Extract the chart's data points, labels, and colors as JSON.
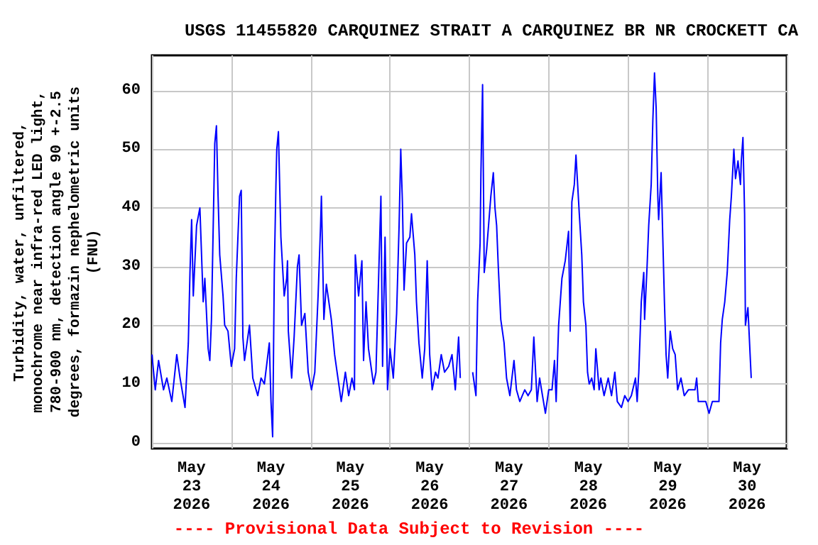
{
  "chart_data": {
    "type": "line",
    "title": "USGS 11455820 CARQUINEZ STRAIT A CARQUINEZ BR NR CROCKETT CA",
    "ylabel": "Turbidity, water, unfiltered,\nmonochrome near infra-red LED light,\n780-900 nm, detection angle 90 +-2.5\ndegrees, formazin nephelometric units\n(FNU)",
    "annotations": [
      "---- Provisional Data Subject to Revision ----"
    ],
    "x": [
      "2026-05-23T00:00",
      "2026-05-23T01:00",
      "2026-05-23T02:00",
      "2026-05-23T03:30",
      "2026-05-23T04:30",
      "2026-05-23T06:00",
      "2026-05-23T07:30",
      "2026-05-23T08:30",
      "2026-05-23T10:00",
      "2026-05-23T11:00",
      "2026-05-23T11:30",
      "2026-05-23T12:00",
      "2026-05-23T12:30",
      "2026-05-23T13:30",
      "2026-05-23T14:30",
      "2026-05-23T15:30",
      "2026-05-23T16:00",
      "2026-05-23T17:00",
      "2026-05-23T17:30",
      "2026-05-23T18:00",
      "2026-05-23T19:00",
      "2026-05-23T19:30",
      "2026-05-23T20:00",
      "2026-05-23T20:30",
      "2026-05-23T21:30",
      "2026-05-23T22:00",
      "2026-05-23T23:00",
      "2026-05-24T00:00",
      "2026-05-24T01:00",
      "2026-05-24T01:30",
      "2026-05-24T02:30",
      "2026-05-24T03:00",
      "2026-05-24T03:30",
      "2026-05-24T04:00",
      "2026-05-24T05:30",
      "2026-05-24T06:30",
      "2026-05-24T08:00",
      "2026-05-24T09:00",
      "2026-05-24T10:00",
      "2026-05-24T11:30",
      "2026-05-24T12:00",
      "2026-05-24T12:30",
      "2026-05-24T12:45",
      "2026-05-24T13:00",
      "2026-05-24T13:30",
      "2026-05-24T13:45",
      "2026-05-24T14:15",
      "2026-05-24T15:00",
      "2026-05-24T16:00",
      "2026-05-24T16:45",
      "2026-05-24T17:00",
      "2026-05-24T17:15",
      "2026-05-24T18:15",
      "2026-05-24T19:00",
      "2026-05-24T20:00",
      "2026-05-24T20:30",
      "2026-05-24T21:15",
      "2026-05-24T22:15",
      "2026-05-24T23:15",
      "2026-05-25T00:15",
      "2026-05-25T01:15",
      "2026-05-25T02:15",
      "2026-05-25T03:00",
      "2026-05-25T03:15",
      "2026-05-25T04:00",
      "2026-05-25T04:45",
      "2026-05-25T06:15",
      "2026-05-25T07:15",
      "2026-05-25T08:15",
      "2026-05-25T09:15",
      "2026-05-25T10:30",
      "2026-05-25T11:30",
      "2026-05-25T12:30",
      "2026-05-25T13:15",
      "2026-05-25T13:30",
      "2026-05-25T14:30",
      "2026-05-25T15:30",
      "2026-05-25T16:00",
      "2026-05-25T16:45",
      "2026-05-25T17:30",
      "2026-05-25T18:45",
      "2026-05-25T19:00",
      "2026-05-25T19:45",
      "2026-05-25T20:45",
      "2026-05-25T21:15",
      "2026-05-25T21:45",
      "2026-05-25T22:30",
      "2026-05-25T23:15",
      "2026-05-26T00:00",
      "2026-05-26T01:00",
      "2026-05-26T02:00",
      "2026-05-26T02:45",
      "2026-05-26T03:15",
      "2026-05-26T03:45",
      "2026-05-26T04:15",
      "2026-05-26T05:00",
      "2026-05-26T06:00",
      "2026-05-26T06:30",
      "2026-05-26T07:30",
      "2026-05-26T08:00",
      "2026-05-26T08:45",
      "2026-05-26T09:45",
      "2026-05-26T10:30",
      "2026-05-26T11:15",
      "2026-05-26T12:00",
      "2026-05-26T12:45",
      "2026-05-26T13:45",
      "2026-05-26T14:30",
      "2026-05-26T15:30",
      "2026-05-26T16:30",
      "2026-05-26T17:45",
      "2026-05-26T18:45",
      "2026-05-26T19:45",
      "2026-05-26T20:45",
      "2026-05-26T21:15",
      "2026-05-26T22:30",
      "2026-05-27T01:00",
      "2026-05-27T02:00",
      "2026-05-27T02:30",
      "2026-05-27T03:15",
      "2026-05-27T03:30",
      "2026-05-27T04:00",
      "2026-05-27T04:30",
      "2026-05-27T05:15",
      "2026-05-27T06:30",
      "2026-05-27T07:15",
      "2026-05-27T07:45",
      "2026-05-27T08:15",
      "2026-05-27T08:45",
      "2026-05-27T09:30",
      "2026-05-27T10:30",
      "2026-05-27T11:15",
      "2026-05-27T12:15",
      "2026-05-27T13:30",
      "2026-05-27T14:15",
      "2026-05-27T15:15",
      "2026-05-27T16:45",
      "2026-05-27T17:45",
      "2026-05-27T18:45",
      "2026-05-27T19:30",
      "2026-05-27T20:30",
      "2026-05-27T21:15",
      "2026-05-27T23:00",
      "2026-05-28T00:00",
      "2026-05-28T01:00",
      "2026-05-28T01:45",
      "2026-05-28T02:15",
      "2026-05-28T03:00",
      "2026-05-28T04:00",
      "2026-05-28T05:00",
      "2026-05-28T06:00",
      "2026-05-28T06:30",
      "2026-05-28T07:00",
      "2026-05-28T07:45",
      "2026-05-28T08:15",
      "2026-05-28T09:15",
      "2026-05-28T10:00",
      "2026-05-28T10:30",
      "2026-05-28T11:15",
      "2026-05-28T11:45",
      "2026-05-28T12:15",
      "2026-05-28T13:00",
      "2026-05-28T13:45",
      "2026-05-28T14:15",
      "2026-05-28T15:15",
      "2026-05-28T15:45",
      "2026-05-28T16:45",
      "2026-05-28T18:00",
      "2026-05-28T19:00",
      "2026-05-28T20:00",
      "2026-05-28T20:45",
      "2026-05-28T22:00",
      "2026-05-28T23:00",
      "2026-05-29T00:00",
      "2026-05-29T01:00",
      "2026-05-29T02:15",
      "2026-05-29T02:45",
      "2026-05-29T03:15",
      "2026-05-29T04:00",
      "2026-05-29T04:45",
      "2026-05-29T05:00",
      "2026-05-29T05:45",
      "2026-05-29T06:15",
      "2026-05-29T07:00",
      "2026-05-29T07:30",
      "2026-05-29T08:00",
      "2026-05-29T08:30",
      "2026-05-29T09:00",
      "2026-05-29T09:15",
      "2026-05-29T10:00",
      "2026-05-29T10:30",
      "2026-05-29T11:00",
      "2026-05-29T11:30",
      "2026-05-29T12:00",
      "2026-05-29T12:45",
      "2026-05-29T13:30",
      "2026-05-29T14:15",
      "2026-05-29T15:00",
      "2026-05-29T16:00",
      "2026-05-29T17:00",
      "2026-05-29T18:15",
      "2026-05-29T19:15",
      "2026-05-29T20:15",
      "2026-05-29T20:45",
      "2026-05-29T21:15",
      "2026-05-29T22:30",
      "2026-05-29T23:30",
      "2026-05-30T00:30",
      "2026-05-30T01:30",
      "2026-05-30T02:45",
      "2026-05-30T03:30",
      "2026-05-30T04:00",
      "2026-05-30T04:30",
      "2026-05-30T05:15",
      "2026-05-30T06:00",
      "2026-05-30T06:45",
      "2026-05-30T07:15",
      "2026-05-30T08:00",
      "2026-05-30T08:30",
      "2026-05-30T09:15",
      "2026-05-30T10:00",
      "2026-05-30T10:15",
      "2026-05-30T10:45",
      "2026-05-30T11:15",
      "2026-05-30T11:30",
      "2026-05-30T12:15",
      "2026-05-30T12:45",
      "2026-05-30T13:15"
    ],
    "series": [
      {
        "color": "#0000ff",
        "values": [
          15,
          9,
          14,
          9,
          11,
          7,
          15,
          11,
          6,
          17,
          29,
          38,
          25,
          37,
          40,
          24,
          28,
          16,
          14,
          21,
          51,
          54,
          42,
          32,
          25,
          20,
          19,
          13,
          16,
          28,
          42,
          43,
          18,
          14,
          20,
          11,
          8,
          11,
          10,
          17,
          7,
          1,
          14,
          29,
          44,
          50,
          53,
          35,
          25,
          28,
          31,
          19,
          11,
          18,
          30,
          32,
          20,
          22,
          12,
          9,
          12,
          25,
          37,
          42,
          21,
          27,
          21,
          15,
          11,
          7,
          12,
          8,
          11,
          9,
          32,
          25,
          31,
          14,
          24,
          16,
          11,
          10,
          12,
          32,
          42,
          13,
          35,
          9,
          16,
          11,
          22,
          37,
          50,
          41,
          26,
          34,
          35,
          39,
          32,
          24,
          17,
          11,
          16,
          31,
          15,
          9,
          12,
          11,
          15,
          12,
          13,
          15,
          9,
          18,
          11,
          null,
          12,
          8,
          24,
          34,
          46,
          61,
          29,
          33,
          42,
          46,
          40,
          37,
          30,
          21,
          17,
          11,
          8,
          14,
          9,
          7,
          9,
          8,
          9,
          18,
          7,
          11,
          5,
          9,
          9,
          14,
          7,
          20,
          28,
          31,
          36,
          19,
          41,
          44,
          49,
          39,
          32,
          24,
          20,
          12,
          10,
          11,
          9,
          16,
          9,
          11,
          8,
          11,
          8,
          12,
          7,
          6,
          8,
          7,
          8,
          11,
          7,
          12,
          24,
          29,
          21,
          30,
          37,
          44,
          55,
          63,
          57,
          42,
          38,
          46,
          35,
          24,
          15,
          11,
          19,
          16,
          15,
          9,
          11,
          8,
          9,
          9,
          9,
          11,
          7,
          7,
          7,
          5,
          7,
          7,
          7,
          17,
          21,
          24,
          29,
          38,
          42,
          50,
          45,
          48,
          44,
          48,
          52,
          39,
          20,
          23,
          17,
          11
        ]
      }
    ],
    "xlim": [
      "2026-05-23",
      "2026-05-31"
    ],
    "xticks": [
      {
        "value": "2026-05-23T00:00",
        "label": null
      },
      {
        "value": "2026-05-23T12:00",
        "label": "May\n23\n2026"
      },
      {
        "value": "2026-05-24T00:00",
        "label": null
      },
      {
        "value": "2026-05-24T12:00",
        "label": "May\n24\n2026"
      },
      {
        "value": "2026-05-25T00:00",
        "label": null
      },
      {
        "value": "2026-05-25T12:00",
        "label": "May\n25\n2026"
      },
      {
        "value": "2026-05-26T00:00",
        "label": null
      },
      {
        "value": "2026-05-26T12:00",
        "label": "May\n26\n2026"
      },
      {
        "value": "2026-05-27T00:00",
        "label": null
      },
      {
        "value": "2026-05-27T12:00",
        "label": "May\n27\n2026"
      },
      {
        "value": "2026-05-28T00:00",
        "label": null
      },
      {
        "value": "2026-05-28T12:00",
        "label": "May\n28\n2026"
      },
      {
        "value": "2026-05-29T00:00",
        "label": null
      },
      {
        "value": "2026-05-29T12:00",
        "label": "May\n29\n2026"
      },
      {
        "value": "2026-05-30T00:00",
        "label": null
      },
      {
        "value": "2026-05-30T12:00",
        "label": "May\n30\n2026"
      },
      {
        "value": "2026-05-31T00:00",
        "label": null
      }
    ],
    "ylim": [
      -1,
      66
    ],
    "yticks": [
      0,
      10,
      20,
      30,
      40,
      50,
      60
    ],
    "grid": true
  }
}
